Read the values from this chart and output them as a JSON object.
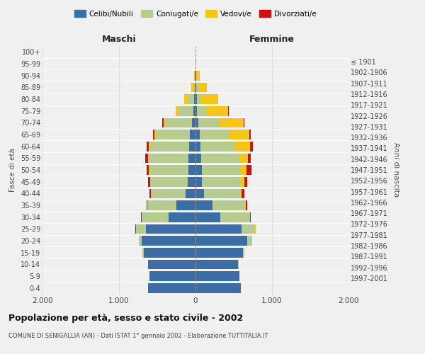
{
  "age_groups": [
    "0-4",
    "5-9",
    "10-14",
    "15-19",
    "20-24",
    "25-29",
    "30-34",
    "35-39",
    "40-44",
    "45-49",
    "50-54",
    "55-59",
    "60-64",
    "65-69",
    "70-74",
    "75-79",
    "80-84",
    "85-89",
    "90-94",
    "95-99",
    "100+"
  ],
  "birth_years": [
    "1997-2001",
    "1992-1996",
    "1987-1991",
    "1982-1986",
    "1977-1981",
    "1972-1976",
    "1967-1971",
    "1962-1966",
    "1957-1961",
    "1952-1956",
    "1947-1951",
    "1942-1946",
    "1937-1941",
    "1932-1936",
    "1927-1931",
    "1922-1926",
    "1917-1921",
    "1912-1916",
    "1907-1911",
    "1902-1906",
    "≤ 1901"
  ],
  "males": {
    "celibi": [
      620,
      600,
      620,
      680,
      700,
      650,
      350,
      250,
      130,
      100,
      95,
      90,
      80,
      70,
      50,
      25,
      20,
      10,
      5,
      2,
      2
    ],
    "coniugati": [
      1,
      2,
      5,
      10,
      40,
      130,
      350,
      380,
      450,
      490,
      510,
      520,
      510,
      450,
      340,
      200,
      80,
      20,
      5,
      0,
      0
    ],
    "vedovi": [
      0,
      0,
      0,
      0,
      1,
      1,
      2,
      2,
      3,
      5,
      8,
      10,
      20,
      20,
      30,
      30,
      50,
      30,
      5,
      0,
      0
    ],
    "divorziati": [
      0,
      0,
      0,
      0,
      1,
      3,
      8,
      10,
      20,
      25,
      30,
      35,
      30,
      20,
      15,
      5,
      0,
      0,
      0,
      0,
      0
    ]
  },
  "females": {
    "nubili": [
      590,
      570,
      560,
      620,
      680,
      600,
      320,
      220,
      110,
      85,
      80,
      75,
      65,
      55,
      35,
      20,
      15,
      10,
      5,
      2,
      2
    ],
    "coniugate": [
      1,
      2,
      5,
      15,
      60,
      180,
      390,
      430,
      470,
      500,
      510,
      490,
      450,
      380,
      280,
      130,
      60,
      15,
      5,
      0,
      0
    ],
    "vedove": [
      0,
      0,
      0,
      0,
      2,
      3,
      5,
      10,
      25,
      50,
      80,
      120,
      200,
      270,
      310,
      280,
      220,
      120,
      50,
      5,
      0
    ],
    "divorziate": [
      0,
      0,
      0,
      0,
      2,
      5,
      10,
      20,
      35,
      40,
      60,
      35,
      35,
      20,
      15,
      5,
      0,
      0,
      0,
      0,
      0
    ]
  },
  "colors": {
    "celibi": "#3A6EA5",
    "coniugati": "#B5CC8E",
    "vedovi": "#F5C518",
    "divorziati": "#CC1111"
  },
  "title": "Popolazione per età, sesso e stato civile - 2002",
  "subtitle": "COMUNE DI SENIGALLIA (AN) - Dati ISTAT 1° gennaio 2002 - Elaborazione TUTTITALIA.IT",
  "xlabel_left": "Maschi",
  "xlabel_right": "Femmine",
  "ylabel_left": "Fasce di età",
  "ylabel_right": "Anni di nascita",
  "xlim": 2000,
  "xticks": [
    -2000,
    -1000,
    0,
    1000,
    2000
  ],
  "xticklabels": [
    "2.000",
    "1.000",
    "0",
    "1.000",
    "2.000"
  ],
  "legend_labels": [
    "Celibi/Nubili",
    "Coniugati/e",
    "Vedovi/e",
    "Divorziati/e"
  ],
  "bg_color": "#f0f0f0",
  "grid_color": "#cccccc"
}
